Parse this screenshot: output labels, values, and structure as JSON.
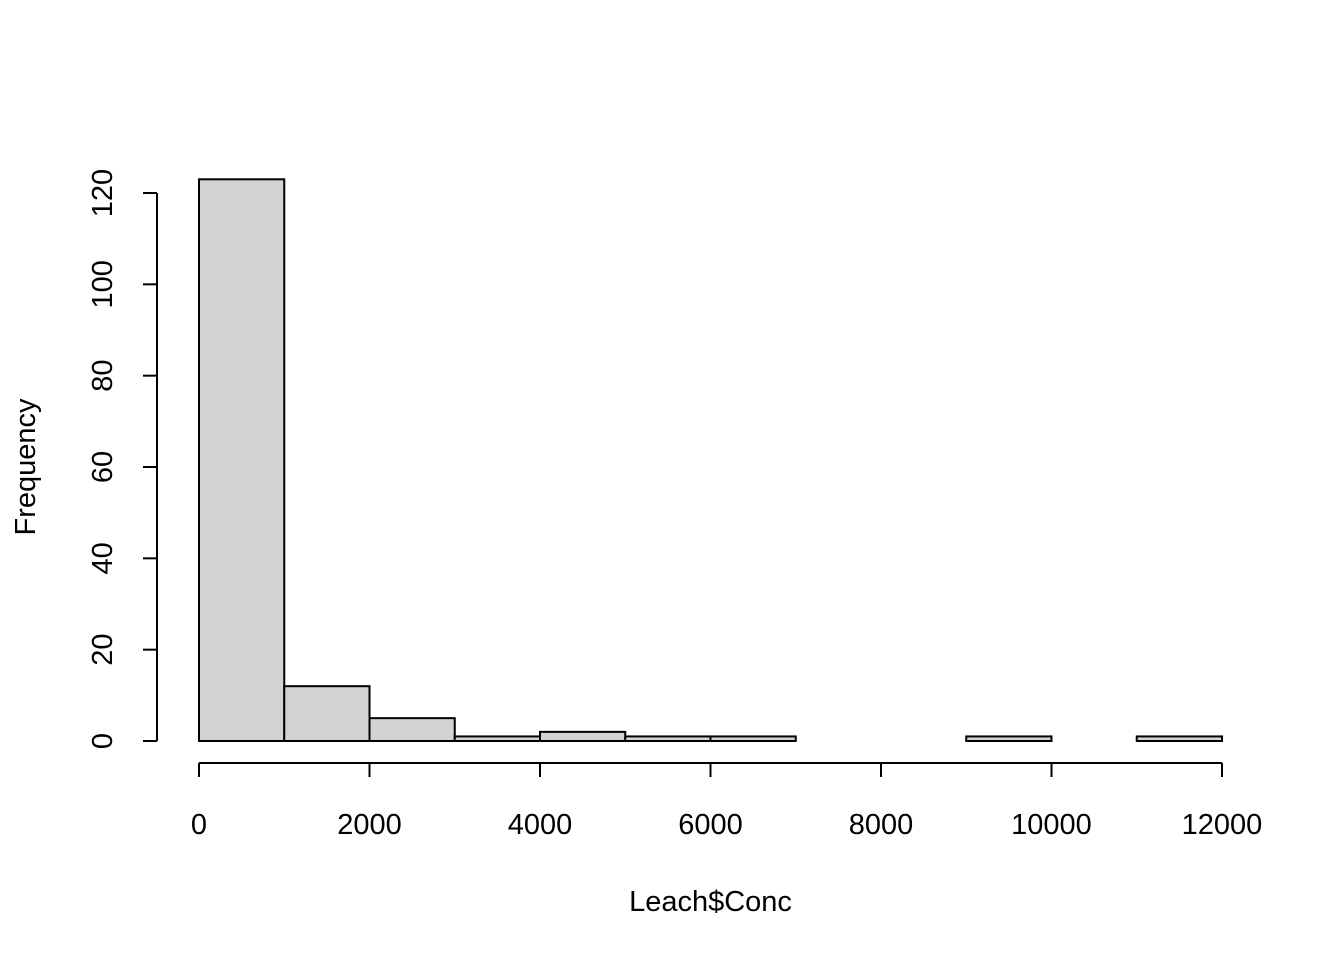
{
  "chart_data": {
    "type": "histogram",
    "title": "",
    "xlabel": "Leach$Conc",
    "ylabel": "Frequency",
    "bin_edges": [
      0,
      1000,
      2000,
      3000,
      4000,
      5000,
      6000,
      7000,
      8000,
      9000,
      10000,
      11000,
      12000
    ],
    "values": [
      123,
      12,
      5,
      1,
      2,
      1,
      1,
      0,
      0,
      1,
      0,
      1
    ],
    "xlim": [
      0,
      12000
    ],
    "ylim": [
      0,
      120
    ],
    "x_ticks": [
      0,
      2000,
      4000,
      6000,
      8000,
      10000,
      12000
    ],
    "x_tick_labels": [
      "0",
      "2000",
      "4000",
      "6000",
      "8000",
      "10000",
      "12000"
    ],
    "y_ticks": [
      0,
      20,
      40,
      60,
      80,
      100,
      120
    ],
    "y_tick_labels": [
      "0",
      "20",
      "40",
      "60",
      "80",
      "100",
      "120"
    ],
    "bar_fill": "#d3d3d3",
    "bar_stroke": "#000000",
    "grid": false,
    "legend": "none"
  }
}
